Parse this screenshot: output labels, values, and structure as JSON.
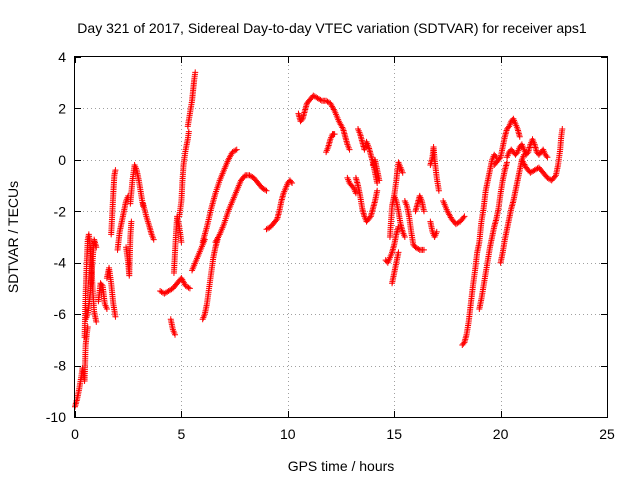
{
  "chart_data": {
    "type": "scatter",
    "title": "Day 321 of 2017, Sidereal Day-to-day VTEC variation (SDTVAR) for receiver aps1",
    "xlabel": "GPS time / hours",
    "ylabel": "SDTVAR / TECUs",
    "xlim": [
      0,
      25
    ],
    "ylim": [
      -10,
      4
    ],
    "xticks": [
      0,
      5,
      10,
      15,
      20,
      25
    ],
    "xtick_labels": [
      "0",
      "5",
      "10",
      "15",
      "20",
      "25"
    ],
    "yticks": [
      -10,
      -8,
      -6,
      -4,
      -2,
      0,
      2,
      4
    ],
    "ytick_labels": [
      "-10",
      "-8",
      "-6",
      "-4",
      "-2",
      "0",
      "2",
      "4"
    ],
    "grid": true,
    "marker": "+",
    "series_color": "#ff0000",
    "tracks": [
      [
        [
          0.0,
          -9.6
        ],
        [
          0.1,
          -9.3
        ],
        [
          0.2,
          -8.9
        ],
        [
          0.3,
          -8.4
        ],
        [
          0.35,
          -8.1
        ],
        [
          0.4,
          -8.3
        ],
        [
          0.45,
          -8.6
        ],
        [
          0.5,
          -7.2
        ],
        [
          0.55,
          -6.8
        ],
        [
          0.6,
          -6.5
        ]
      ],
      [
        [
          0.45,
          -6.9
        ],
        [
          0.5,
          -5.2
        ],
        [
          0.55,
          -4.0
        ],
        [
          0.6,
          -3.1
        ],
        [
          0.65,
          -2.9
        ],
        [
          0.7,
          -3.2
        ],
        [
          0.8,
          -4.6
        ],
        [
          0.9,
          -5.9
        ],
        [
          1.0,
          -6.3
        ]
      ],
      [
        [
          0.5,
          -6.2
        ],
        [
          0.6,
          -6.0
        ],
        [
          0.7,
          -5.3
        ],
        [
          0.8,
          -4.2
        ],
        [
          0.9,
          -3.1
        ],
        [
          1.0,
          -3.4
        ]
      ],
      [
        [
          1.1,
          -5.5
        ],
        [
          1.2,
          -4.8
        ],
        [
          1.3,
          -4.9
        ],
        [
          1.4,
          -5.6
        ],
        [
          1.5,
          -5.8
        ]
      ],
      [
        [
          1.5,
          -4.6
        ],
        [
          1.6,
          -4.2
        ],
        [
          1.7,
          -4.8
        ],
        [
          1.8,
          -5.6
        ],
        [
          1.9,
          -6.1
        ]
      ],
      [
        [
          1.7,
          -2.9
        ],
        [
          1.75,
          -2.1
        ],
        [
          1.8,
          -1.3
        ],
        [
          1.85,
          -0.6
        ],
        [
          1.9,
          -0.4
        ]
      ],
      [
        [
          2.0,
          -3.5
        ],
        [
          2.1,
          -2.8
        ],
        [
          2.2,
          -2.4
        ],
        [
          2.3,
          -2.0
        ],
        [
          2.4,
          -1.6
        ],
        [
          2.5,
          -1.4
        ]
      ],
      [
        [
          2.4,
          -3.4
        ],
        [
          2.5,
          -4.0
        ],
        [
          2.55,
          -4.5
        ],
        [
          2.6,
          -3.0
        ],
        [
          2.65,
          -2.4
        ]
      ],
      [
        [
          2.6,
          -1.7
        ],
        [
          2.7,
          -0.8
        ],
        [
          2.8,
          -0.2
        ],
        [
          2.9,
          -0.4
        ],
        [
          3.0,
          -0.8
        ],
        [
          3.1,
          -1.3
        ],
        [
          3.2,
          -1.8
        ]
      ],
      [
        [
          3.2,
          -1.7
        ],
        [
          3.35,
          -2.2
        ],
        [
          3.5,
          -2.6
        ],
        [
          3.6,
          -2.9
        ],
        [
          3.7,
          -3.1
        ]
      ],
      [
        [
          4.0,
          -5.1
        ],
        [
          4.2,
          -5.2
        ],
        [
          4.4,
          -5.1
        ],
        [
          4.6,
          -5.0
        ],
        [
          4.8,
          -4.8
        ],
        [
          5.0,
          -4.6
        ],
        [
          5.2,
          -4.9
        ],
        [
          5.4,
          -5.0
        ]
      ],
      [
        [
          4.5,
          -6.2
        ],
        [
          4.6,
          -6.6
        ],
        [
          4.7,
          -6.8
        ]
      ],
      [
        [
          4.65,
          -4.4
        ],
        [
          4.7,
          -3.6
        ],
        [
          4.75,
          -2.8
        ],
        [
          4.8,
          -2.2
        ],
        [
          4.9,
          -2.6
        ],
        [
          5.0,
          -3.2
        ]
      ],
      [
        [
          4.9,
          -2.2
        ],
        [
          5.0,
          -1.6
        ],
        [
          5.05,
          -0.8
        ],
        [
          5.1,
          -0.2
        ],
        [
          5.2,
          0.4
        ],
        [
          5.3,
          0.8
        ],
        [
          5.35,
          1.1
        ]
      ],
      [
        [
          5.3,
          1.3
        ],
        [
          5.4,
          1.8
        ],
        [
          5.5,
          2.3
        ],
        [
          5.55,
          2.7
        ],
        [
          5.6,
          3.1
        ],
        [
          5.65,
          3.4
        ]
      ],
      [
        [
          5.5,
          -4.3
        ],
        [
          5.6,
          -4.1
        ],
        [
          5.7,
          -3.9
        ],
        [
          5.8,
          -3.7
        ],
        [
          5.9,
          -3.5
        ],
        [
          6.0,
          -3.3
        ],
        [
          6.1,
          -3.1
        ]
      ],
      [
        [
          6.0,
          -3.2
        ],
        [
          6.2,
          -2.6
        ],
        [
          6.4,
          -1.9
        ],
        [
          6.6,
          -1.3
        ],
        [
          6.8,
          -0.8
        ],
        [
          7.0,
          -0.4
        ],
        [
          7.2,
          0.0
        ],
        [
          7.4,
          0.3
        ],
        [
          7.6,
          0.4
        ]
      ],
      [
        [
          6.0,
          -6.2
        ],
        [
          6.1,
          -6.0
        ],
        [
          6.2,
          -5.6
        ],
        [
          6.3,
          -5.0
        ],
        [
          6.4,
          -4.4
        ],
        [
          6.5,
          -3.8
        ],
        [
          6.6,
          -3.4
        ],
        [
          6.7,
          -3.1
        ]
      ],
      [
        [
          6.6,
          -3.2
        ],
        [
          6.8,
          -2.9
        ],
        [
          7.0,
          -2.5
        ],
        [
          7.2,
          -2.0
        ],
        [
          7.4,
          -1.6
        ],
        [
          7.6,
          -1.2
        ],
        [
          7.8,
          -0.8
        ],
        [
          8.0,
          -0.6
        ],
        [
          8.2,
          -0.6
        ],
        [
          8.4,
          -0.7
        ],
        [
          8.6,
          -0.9
        ],
        [
          8.8,
          -1.1
        ],
        [
          9.0,
          -1.2
        ]
      ],
      [
        [
          9.0,
          -2.7
        ],
        [
          9.2,
          -2.6
        ],
        [
          9.4,
          -2.4
        ],
        [
          9.5,
          -2.3
        ],
        [
          9.6,
          -2.0
        ],
        [
          9.7,
          -1.6
        ],
        [
          9.8,
          -1.3
        ],
        [
          9.9,
          -1.1
        ],
        [
          10.0,
          -0.9
        ],
        [
          10.1,
          -0.8
        ],
        [
          10.2,
          -0.9
        ]
      ],
      [
        [
          10.5,
          1.8
        ],
        [
          10.6,
          1.5
        ],
        [
          10.7,
          1.6
        ],
        [
          10.8,
          1.9
        ],
        [
          10.9,
          2.2
        ],
        [
          11.0,
          2.3
        ],
        [
          11.2,
          2.5
        ],
        [
          11.4,
          2.4
        ],
        [
          11.6,
          2.3
        ],
        [
          11.8,
          2.3
        ],
        [
          12.0,
          2.2
        ],
        [
          12.2,
          1.9
        ],
        [
          12.4,
          1.5
        ],
        [
          12.6,
          1.2
        ],
        [
          12.7,
          0.9
        ],
        [
          12.8,
          0.6
        ],
        [
          12.9,
          0.4
        ]
      ],
      [
        [
          11.8,
          0.3
        ],
        [
          11.9,
          0.5
        ],
        [
          12.0,
          0.8
        ],
        [
          12.1,
          1.0
        ],
        [
          12.2,
          1.0
        ]
      ],
      [
        [
          12.8,
          -0.7
        ],
        [
          12.9,
          -0.9
        ],
        [
          13.0,
          -1.0
        ],
        [
          13.1,
          -1.1
        ],
        [
          13.2,
          -1.3
        ]
      ],
      [
        [
          13.3,
          1.2
        ],
        [
          13.4,
          1.0
        ],
        [
          13.5,
          0.7
        ],
        [
          13.6,
          0.4
        ],
        [
          13.7,
          0.7
        ],
        [
          13.8,
          0.5
        ],
        [
          13.9,
          0.2
        ],
        [
          14.0,
          -0.1
        ],
        [
          14.1,
          -0.5
        ],
        [
          14.2,
          -0.9
        ]
      ],
      [
        [
          13.2,
          -0.7
        ],
        [
          13.3,
          -1.0
        ],
        [
          13.4,
          -1.4
        ],
        [
          13.5,
          -1.9
        ],
        [
          13.6,
          -2.2
        ],
        [
          13.7,
          -2.4
        ],
        [
          13.8,
          -2.3
        ],
        [
          13.9,
          -2.2
        ],
        [
          14.0,
          -1.9
        ],
        [
          14.1,
          -1.6
        ],
        [
          14.2,
          -1.2
        ]
      ],
      [
        [
          14.0,
          -0.2
        ],
        [
          14.1,
          0.0
        ],
        [
          14.2,
          -0.4
        ],
        [
          14.3,
          -0.8
        ]
      ],
      [
        [
          14.6,
          -3.9
        ],
        [
          14.7,
          -4.0
        ],
        [
          14.8,
          -3.8
        ],
        [
          14.9,
          -3.6
        ],
        [
          15.0,
          -3.3
        ],
        [
          15.1,
          -2.9
        ],
        [
          15.2,
          -2.6
        ]
      ],
      [
        [
          14.8,
          -3.0
        ],
        [
          14.85,
          -2.4
        ],
        [
          14.9,
          -1.8
        ],
        [
          15.0,
          -1.4
        ],
        [
          15.1,
          -1.6
        ],
        [
          15.2,
          -2.0
        ],
        [
          15.3,
          -2.5
        ],
        [
          15.4,
          -2.8
        ],
        [
          15.5,
          -3.0
        ]
      ],
      [
        [
          14.9,
          -4.8
        ],
        [
          15.0,
          -4.4
        ],
        [
          15.1,
          -4.0
        ],
        [
          15.2,
          -3.6
        ]
      ],
      [
        [
          15.0,
          -1.4
        ],
        [
          15.1,
          -0.8
        ],
        [
          15.15,
          -0.4
        ],
        [
          15.2,
          -0.1
        ],
        [
          15.3,
          -0.3
        ],
        [
          15.4,
          -0.5
        ]
      ],
      [
        [
          15.5,
          -1.6
        ],
        [
          15.6,
          -1.8
        ],
        [
          15.7,
          -2.2
        ],
        [
          15.8,
          -2.8
        ],
        [
          15.9,
          -3.3
        ],
        [
          16.0,
          -3.4
        ],
        [
          16.2,
          -3.5
        ],
        [
          16.4,
          -3.5
        ]
      ],
      [
        [
          16.0,
          -2.0
        ],
        [
          16.1,
          -1.7
        ],
        [
          16.2,
          -1.4
        ],
        [
          16.3,
          -1.6
        ],
        [
          16.4,
          -2.0
        ]
      ],
      [
        [
          16.7,
          -2.4
        ],
        [
          16.8,
          -2.8
        ],
        [
          16.9,
          -3.0
        ],
        [
          17.0,
          -2.8
        ]
      ],
      [
        [
          16.7,
          -0.2
        ],
        [
          16.8,
          0.1
        ],
        [
          16.85,
          0.5
        ],
        [
          16.9,
          0.0
        ],
        [
          17.0,
          -0.7
        ],
        [
          17.1,
          -1.2
        ]
      ],
      [
        [
          17.3,
          -1.6
        ],
        [
          17.5,
          -2.0
        ],
        [
          17.7,
          -2.3
        ],
        [
          17.9,
          -2.5
        ],
        [
          18.1,
          -2.4
        ],
        [
          18.3,
          -2.2
        ]
      ],
      [
        [
          18.2,
          -7.2
        ],
        [
          18.3,
          -7.1
        ],
        [
          18.4,
          -6.8
        ],
        [
          18.5,
          -6.3
        ],
        [
          18.6,
          -5.6
        ],
        [
          18.7,
          -4.9
        ],
        [
          18.8,
          -4.3
        ],
        [
          18.9,
          -3.6
        ],
        [
          19.0,
          -3.2
        ],
        [
          19.1,
          -2.4
        ],
        [
          19.2,
          -1.9
        ],
        [
          19.3,
          -1.2
        ],
        [
          19.4,
          -0.8
        ],
        [
          19.5,
          -0.4
        ],
        [
          19.6,
          0.0
        ],
        [
          19.7,
          0.2
        ],
        [
          19.8,
          0.1
        ]
      ],
      [
        [
          19.0,
          -5.8
        ],
        [
          19.1,
          -5.4
        ],
        [
          19.2,
          -4.9
        ],
        [
          19.3,
          -4.4
        ],
        [
          19.4,
          -3.9
        ],
        [
          19.5,
          -3.4
        ],
        [
          19.6,
          -3.0
        ],
        [
          19.7,
          -2.6
        ],
        [
          19.8,
          -2.3
        ],
        [
          19.9,
          -1.9
        ],
        [
          20.0,
          -1.3
        ],
        [
          20.1,
          -0.8
        ],
        [
          20.2,
          -0.4
        ],
        [
          20.3,
          -0.1
        ]
      ],
      [
        [
          19.7,
          -0.2
        ],
        [
          19.8,
          -0.1
        ],
        [
          19.9,
          0.0
        ],
        [
          20.0,
          0.1
        ],
        [
          20.1,
          0.5
        ],
        [
          20.2,
          0.9
        ],
        [
          20.3,
          1.2
        ],
        [
          20.4,
          1.3
        ],
        [
          20.5,
          1.5
        ],
        [
          20.6,
          1.6
        ],
        [
          20.7,
          1.4
        ],
        [
          20.8,
          1.2
        ],
        [
          20.9,
          0.9
        ]
      ],
      [
        [
          20.0,
          -4.0
        ],
        [
          20.1,
          -3.6
        ],
        [
          20.2,
          -3.1
        ],
        [
          20.3,
          -2.7
        ],
        [
          20.4,
          -2.3
        ],
        [
          20.5,
          -1.9
        ],
        [
          20.6,
          -1.6
        ],
        [
          20.7,
          -1.2
        ],
        [
          20.8,
          -0.8
        ],
        [
          20.9,
          -0.4
        ],
        [
          21.0,
          0.0
        ],
        [
          21.1,
          0.2
        ]
      ],
      [
        [
          20.3,
          0.1
        ],
        [
          20.4,
          0.3
        ],
        [
          20.5,
          0.4
        ],
        [
          20.6,
          0.3
        ],
        [
          20.7,
          0.2
        ],
        [
          20.8,
          0.3
        ],
        [
          20.9,
          0.5
        ],
        [
          21.0,
          0.6
        ],
        [
          21.1,
          0.4
        ],
        [
          21.2,
          0.2
        ],
        [
          21.3,
          0.3
        ],
        [
          21.4,
          0.6
        ],
        [
          21.5,
          0.8
        ],
        [
          21.6,
          0.6
        ],
        [
          21.7,
          0.3
        ],
        [
          21.8,
          0.2
        ],
        [
          21.9,
          0.3
        ],
        [
          22.0,
          0.4
        ],
        [
          22.1,
          0.2
        ],
        [
          22.2,
          0.1
        ]
      ],
      [
        [
          21.0,
          0.0
        ],
        [
          21.2,
          -0.3
        ],
        [
          21.4,
          -0.5
        ],
        [
          21.6,
          -0.4
        ],
        [
          21.8,
          -0.3
        ],
        [
          22.0,
          -0.5
        ],
        [
          22.2,
          -0.7
        ],
        [
          22.4,
          -0.8
        ],
        [
          22.6,
          -0.6
        ],
        [
          22.7,
          -0.2
        ],
        [
          22.8,
          0.4
        ],
        [
          22.85,
          0.9
        ],
        [
          22.9,
          1.2
        ]
      ]
    ]
  }
}
